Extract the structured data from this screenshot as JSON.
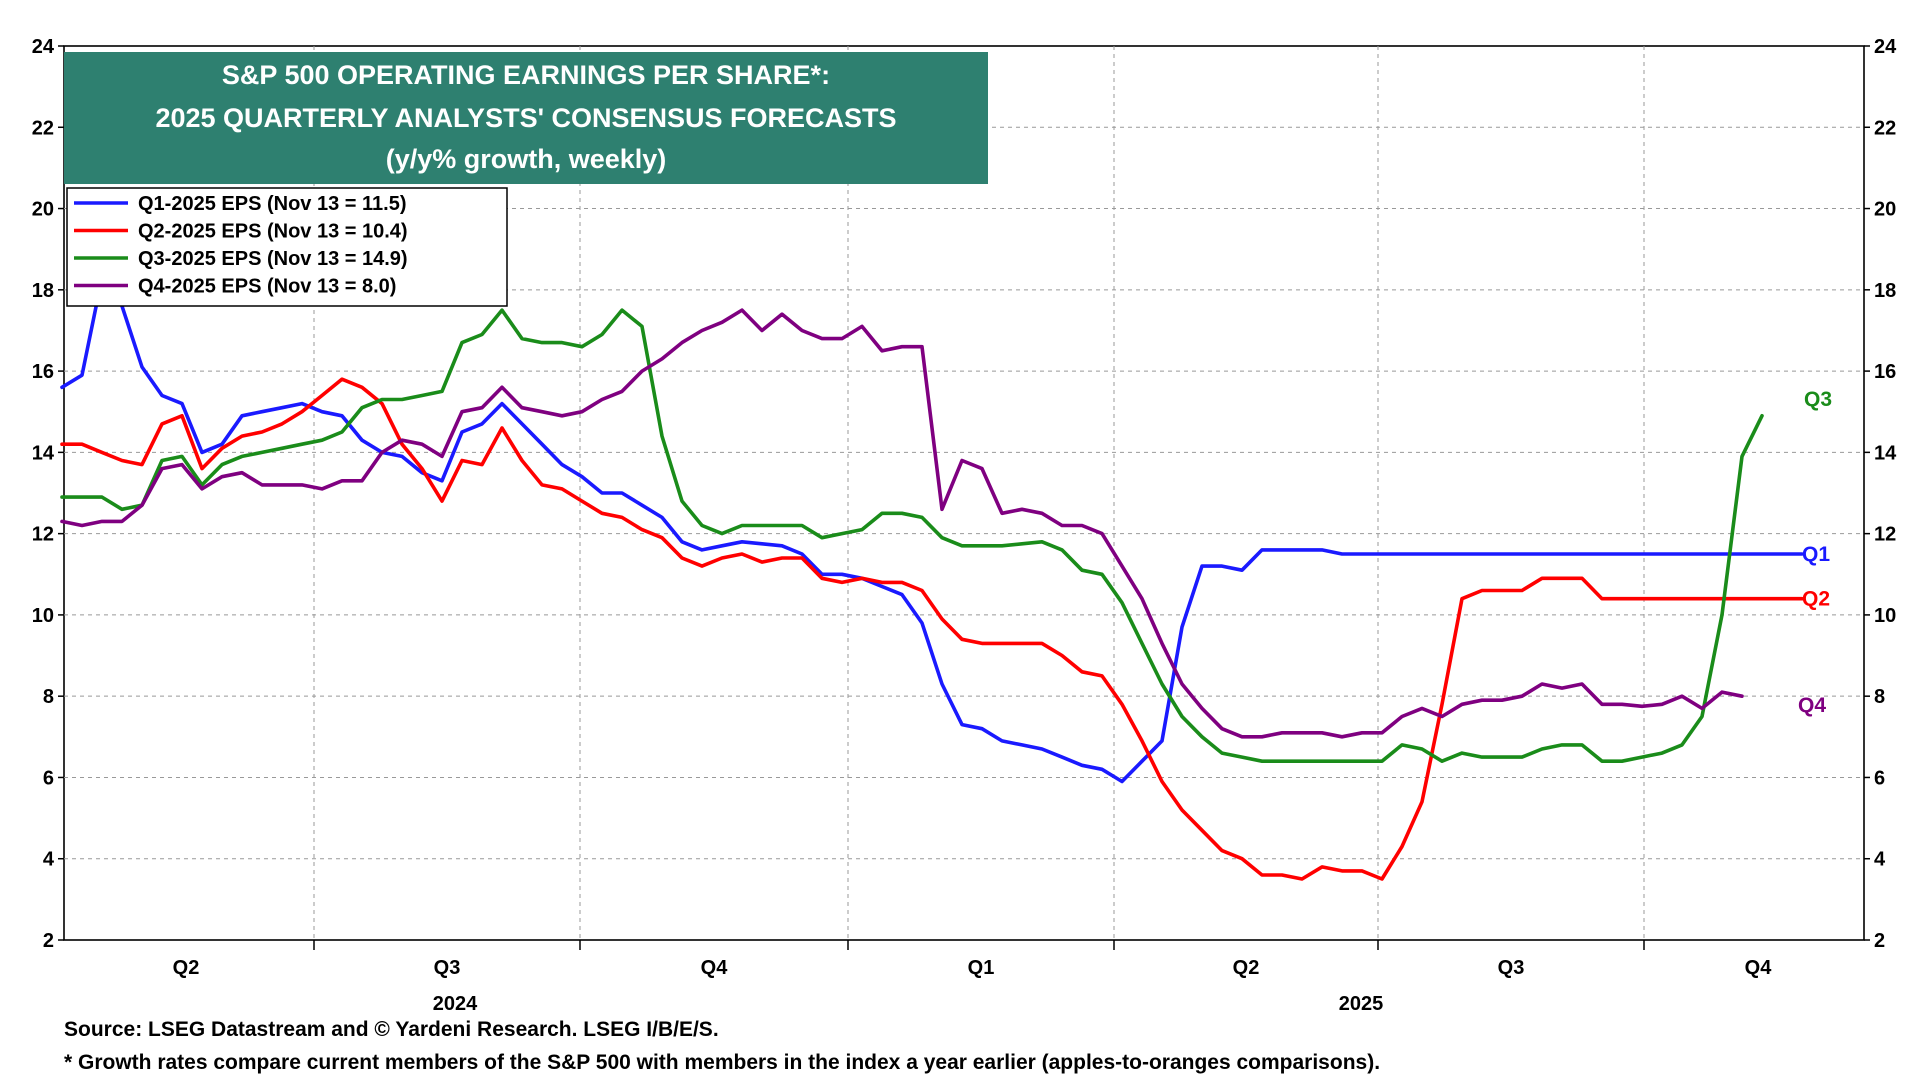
{
  "chart_data": {
    "type": "line",
    "title_lines": [
      "S&P 500 OPERATING EARNINGS PER SHARE*:",
      "2025 QUARTERLY ANALYSTS' CONSENSUS FORECASTS",
      "(y/y% growth, weekly)"
    ],
    "ylim": [
      2,
      24
    ],
    "yticks": [
      "2",
      "4",
      "6",
      "8",
      "10",
      "12",
      "14",
      "16",
      "18",
      "20",
      "22",
      "24"
    ],
    "quarter_labels": [
      "Q2",
      "Q3",
      "Q4",
      "Q1",
      "Q2",
      "Q3",
      "Q4"
    ],
    "year_labels": [
      "2024",
      "2025"
    ],
    "legend_position": "top-left",
    "series": [
      {
        "name": "Q1-2025 EPS (Nov 13 = 11.5)",
        "end_label": "Q1",
        "color": "#1a1aff",
        "values": [
          15.6,
          15.9,
          18.3,
          17.6,
          16.1,
          15.4,
          15.2,
          14.0,
          14.2,
          14.9,
          15.0,
          15.1,
          15.2,
          15.0,
          14.9,
          14.3,
          14.0,
          13.9,
          13.5,
          13.3,
          14.5,
          14.7,
          15.2,
          14.7,
          14.2,
          13.7,
          13.4,
          13.0,
          13.0,
          12.7,
          12.4,
          11.8,
          11.6,
          11.7,
          11.8,
          11.75,
          11.7,
          11.5,
          11.0,
          11.0,
          10.9,
          10.7,
          10.5,
          9.8,
          8.3,
          7.3,
          7.2,
          6.9,
          6.8,
          6.7,
          6.5,
          6.3,
          6.2,
          5.9,
          6.4,
          6.9,
          9.7,
          11.2,
          11.2,
          11.1,
          11.6,
          11.6,
          11.6,
          11.6,
          11.5,
          11.5,
          11.5,
          11.5,
          11.5,
          11.5,
          11.5,
          11.5,
          11.5,
          11.5,
          11.5,
          11.5,
          11.5,
          11.5,
          11.5,
          11.5,
          11.5,
          11.5,
          11.5,
          11.5,
          11.5,
          11.5,
          11.5,
          11.5
        ]
      },
      {
        "name": "Q2-2025 EPS (Nov 13 = 10.4)",
        "end_label": "Q2",
        "color": "#ff0000",
        "values": [
          14.2,
          14.2,
          14.0,
          13.8,
          13.7,
          14.7,
          14.9,
          13.6,
          14.1,
          14.4,
          14.5,
          14.7,
          15.0,
          15.4,
          15.8,
          15.6,
          15.2,
          14.2,
          13.6,
          12.8,
          13.8,
          13.7,
          14.6,
          13.8,
          13.2,
          13.1,
          12.8,
          12.5,
          12.4,
          12.1,
          11.9,
          11.4,
          11.2,
          11.4,
          11.5,
          11.3,
          11.4,
          11.4,
          10.9,
          10.8,
          10.9,
          10.8,
          10.8,
          10.6,
          9.9,
          9.4,
          9.3,
          9.3,
          9.3,
          9.3,
          9.0,
          8.6,
          8.5,
          7.8,
          6.9,
          5.9,
          5.2,
          4.7,
          4.2,
          4.0,
          3.6,
          3.6,
          3.5,
          3.8,
          3.7,
          3.7,
          3.5,
          4.3,
          5.4,
          7.8,
          10.4,
          10.6,
          10.6,
          10.6,
          10.9,
          10.9,
          10.9,
          10.4,
          10.4,
          10.4,
          10.4,
          10.4,
          10.4,
          10.4,
          10.4,
          10.4,
          10.4,
          10.4
        ]
      },
      {
        "name": "Q3-2025 EPS (Nov 13 = 14.9)",
        "end_label": "Q3",
        "color": "#1a8c1a",
        "values": [
          12.9,
          12.9,
          12.9,
          12.6,
          12.7,
          13.8,
          13.9,
          13.2,
          13.7,
          13.9,
          14.0,
          14.1,
          14.2,
          14.3,
          14.5,
          15.1,
          15.3,
          15.3,
          15.4,
          15.5,
          16.7,
          16.9,
          17.5,
          16.8,
          16.7,
          16.7,
          16.6,
          16.9,
          17.5,
          17.1,
          14.4,
          12.8,
          12.2,
          12.0,
          12.2,
          12.2,
          12.2,
          12.2,
          11.9,
          12.0,
          12.1,
          12.5,
          12.5,
          12.4,
          11.9,
          11.7,
          11.7,
          11.7,
          11.75,
          11.8,
          11.6,
          11.1,
          11.0,
          10.3,
          9.3,
          8.3,
          7.5,
          7.0,
          6.6,
          6.5,
          6.4,
          6.4,
          6.4,
          6.4,
          6.4,
          6.4,
          6.4,
          6.8,
          6.7,
          6.4,
          6.6,
          6.5,
          6.5,
          6.5,
          6.7,
          6.8,
          6.8,
          6.4,
          6.4,
          6.5,
          6.6,
          6.8,
          7.5,
          10.0,
          13.9,
          14.9
        ]
      },
      {
        "name": "Q4-2025 EPS (Nov 13 = 8.0)",
        "end_label": "Q4",
        "color": "#7f0080",
        "values": [
          12.3,
          12.2,
          12.3,
          12.3,
          12.7,
          13.6,
          13.7,
          13.1,
          13.4,
          13.5,
          13.2,
          13.2,
          13.2,
          13.1,
          13.3,
          13.3,
          14.0,
          14.3,
          14.2,
          13.9,
          15.0,
          15.1,
          15.6,
          15.1,
          15.0,
          14.9,
          15.0,
          15.3,
          15.5,
          16.0,
          16.3,
          16.7,
          17.0,
          17.2,
          17.5,
          17.0,
          17.4,
          17.0,
          16.8,
          16.8,
          17.1,
          16.5,
          16.6,
          16.6,
          12.6,
          13.8,
          13.6,
          12.5,
          12.6,
          12.5,
          12.2,
          12.2,
          12.0,
          11.2,
          10.4,
          9.3,
          8.3,
          7.7,
          7.2,
          7.0,
          7.0,
          7.1,
          7.1,
          7.1,
          7.0,
          7.1,
          7.1,
          7.5,
          7.7,
          7.5,
          7.8,
          7.9,
          7.9,
          8.0,
          8.3,
          8.2,
          8.3,
          7.8,
          7.8,
          7.75,
          7.8,
          8.0,
          7.7,
          8.1,
          8.0
        ]
      }
    ]
  },
  "footnotes": {
    "source": "Source: LSEG Datastream and © Yardeni Research. LSEG I/B/E/S.",
    "note": "* Growth rates compare current members of the S&P 500 with members in the index a year earlier (apples-to-oranges comparisons)."
  }
}
